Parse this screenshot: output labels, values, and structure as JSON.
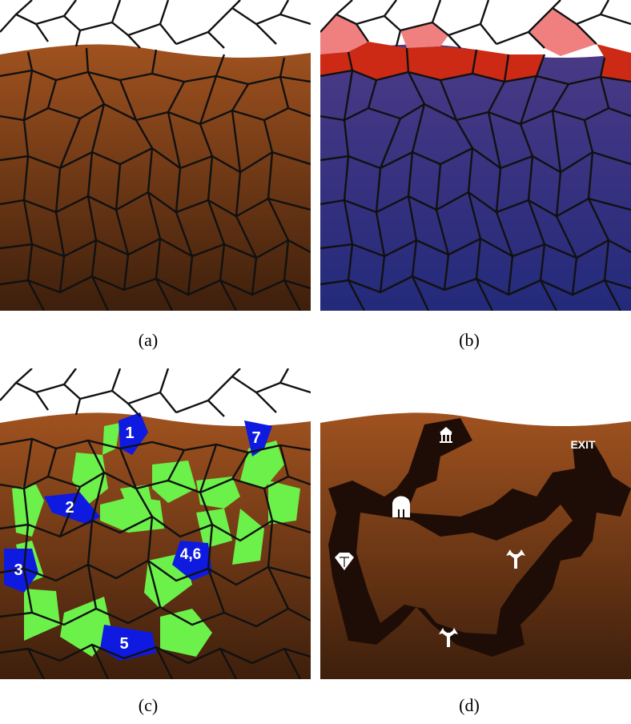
{
  "figure": {
    "captions": [
      "(a)",
      "(b)",
      "(c)",
      "(d)"
    ]
  },
  "colors": {
    "sky": "#ffffff",
    "soil_top": "#a0521f",
    "soil_bottom": "#3d1f0c",
    "subsurface_top": "#4b3a86",
    "subsurface_bottom": "#232a7a",
    "surface_pink": "#f08080",
    "surface_red": "#cc2a14",
    "path_green": "#6cf04a",
    "key_blue": "#0f1ae0",
    "tunnel": "#1e0d06",
    "cell_edge": "#111111"
  },
  "panel_c": {
    "node_labels": [
      "1",
      "2",
      "3",
      "4,6",
      "5",
      "7"
    ]
  },
  "panel_d": {
    "exit_label": "EXIT",
    "icons": [
      "temple-icon",
      "helmet-icon",
      "diamond-icon",
      "crossroads-icon",
      "crossroads-icon"
    ]
  }
}
